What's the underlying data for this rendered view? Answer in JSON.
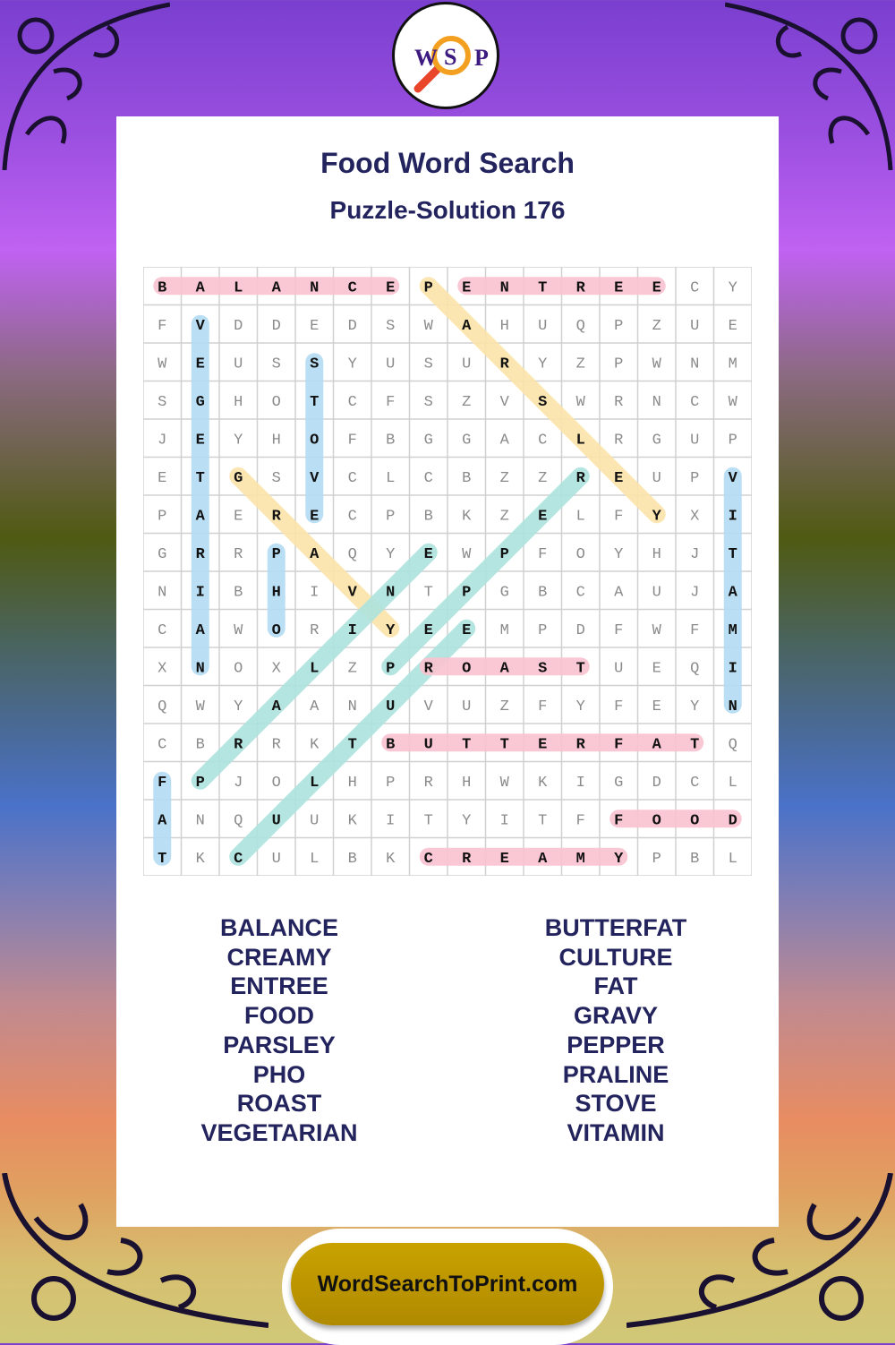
{
  "logo": {
    "letters": [
      "W",
      "S",
      "P"
    ],
    "icon": "magnifier-icon"
  },
  "title": "Food Word Search",
  "subtitle": "Puzzle-Solution 176",
  "grid": [
    "BALANCEPENTREECY",
    "FVDDEDSWAHUQPZUE",
    "WEUSSYUSURYZPWNM",
    "SGHOTCFSZVSWRNCW",
    "JEYHOFBGGACLRGUP",
    "ETGSVCLCBZZREUPV",
    "PAERECPBKZELFYXI",
    "GRRPAQYEWPFOYHJT",
    "NIBHIVNTPGBCAUJA",
    "CAWORIYEEMPDFWFM",
    "XNOXLZPROASTUEQI",
    "QWYAANUVUZFYFEYN",
    "CBRRKTBUTTERFATQ",
    "FPJOLHPRHWKIGDCL",
    "ANQUUKITYITFFOOD",
    "TKCULBKCREAMYPBL"
  ],
  "colors": {
    "horizontal": "#f9c2d0",
    "vertical": "#b3dbf3",
    "diagonal_down": "#fbe3aa",
    "diagonal_up": "#ace2dd",
    "text": "#23235e",
    "button": "#c09a00"
  },
  "solutions": [
    {
      "word": "BALANCE",
      "start": [
        0,
        0
      ],
      "end": [
        0,
        6
      ],
      "color": "horizontal"
    },
    {
      "word": "ENTREE",
      "start": [
        0,
        8
      ],
      "end": [
        0,
        13
      ],
      "color": "horizontal"
    },
    {
      "word": "PARSLEY",
      "start": [
        0,
        7
      ],
      "end": [
        6,
        13
      ],
      "color": "diagonal_down"
    },
    {
      "word": "VEGETARIAN",
      "start": [
        1,
        1
      ],
      "end": [
        10,
        1
      ],
      "color": "vertical"
    },
    {
      "word": "STOVE",
      "start": [
        2,
        4
      ],
      "end": [
        6,
        4
      ],
      "color": "vertical"
    },
    {
      "word": "GRAVY",
      "start": [
        5,
        2
      ],
      "end": [
        9,
        6
      ],
      "color": "diagonal_down"
    },
    {
      "word": "PHO",
      "start": [
        7,
        3
      ],
      "end": [
        9,
        3
      ],
      "color": "vertical"
    },
    {
      "word": "VITAMIN",
      "start": [
        5,
        15
      ],
      "end": [
        11,
        15
      ],
      "color": "vertical"
    },
    {
      "word": "CULTURE",
      "start": [
        15,
        2
      ],
      "end": [
        9,
        8
      ],
      "color": "diagonal_up"
    },
    {
      "word": "PRALINE",
      "start": [
        13,
        1
      ],
      "end": [
        7,
        7
      ],
      "color": "diagonal_up"
    },
    {
      "word": "PEPPER",
      "start": [
        10,
        6
      ],
      "end": [
        5,
        11
      ],
      "color": "diagonal_up"
    },
    {
      "word": "ROAST",
      "start": [
        10,
        7
      ],
      "end": [
        10,
        11
      ],
      "color": "horizontal"
    },
    {
      "word": "BUTTERFAT",
      "start": [
        12,
        6
      ],
      "end": [
        12,
        14
      ],
      "color": "horizontal"
    },
    {
      "word": "FAT",
      "start": [
        13,
        0
      ],
      "end": [
        15,
        0
      ],
      "color": "vertical"
    },
    {
      "word": "FOOD",
      "start": [
        14,
        12
      ],
      "end": [
        14,
        15
      ],
      "color": "horizontal"
    },
    {
      "word": "CREAMY",
      "start": [
        15,
        7
      ],
      "end": [
        15,
        12
      ],
      "color": "horizontal"
    }
  ],
  "word_list_left": [
    "BALANCE",
    "CREAMY",
    "ENTREE",
    "FOOD",
    "PARSLEY",
    "PHO",
    "ROAST",
    "VEGETARIAN"
  ],
  "word_list_right": [
    "BUTTERFAT",
    "CULTURE",
    "FAT",
    "GRAVY",
    "PEPPER",
    "PRALINE",
    "STOVE",
    "VITAMIN"
  ],
  "footer": {
    "site": "WordSearchToPrint.com"
  }
}
